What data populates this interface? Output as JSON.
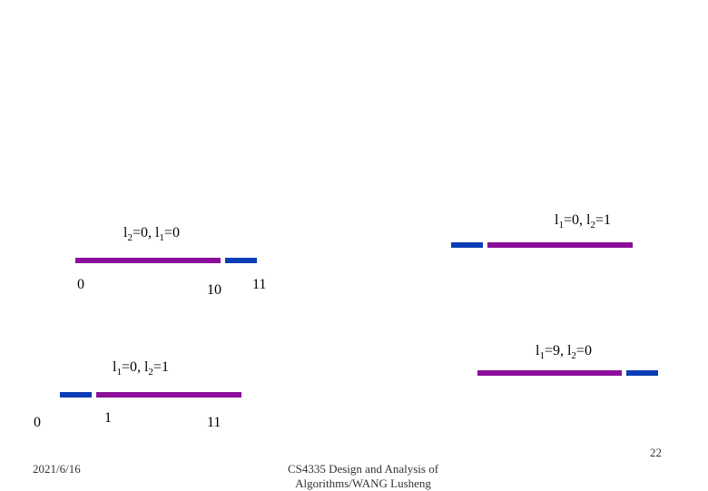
{
  "slide": {
    "page_number": "22",
    "date": "2021/6/16",
    "course_line1": "CS4335 Design and Analysis of",
    "course_line2": "Algorithms/WANG Lusheng"
  },
  "diagrams": [
    {
      "label": {
        "a": "l",
        "a_sub": "2",
        "mid": "=0, l",
        "b_sub": "1",
        "end": "=0"
      },
      "ticks": [
        "0",
        "10",
        "11"
      ]
    },
    {
      "label": {
        "a": "l",
        "a_sub": "1",
        "mid": "=0, l",
        "b_sub": "2",
        "end": "=1"
      },
      "ticks": []
    },
    {
      "label": {
        "a": "l",
        "a_sub": "1",
        "mid": "=9, l",
        "b_sub": "2",
        "end": "=0"
      },
      "ticks": []
    },
    {
      "label": {
        "a": "l",
        "a_sub": "1",
        "mid": "=0, l",
        "b_sub": "2",
        "end": "=1"
      },
      "ticks": [
        "0",
        "1",
        "11"
      ]
    }
  ],
  "colors": {
    "job_long": "#8b0f9a",
    "job_short": "#0b3db5"
  }
}
